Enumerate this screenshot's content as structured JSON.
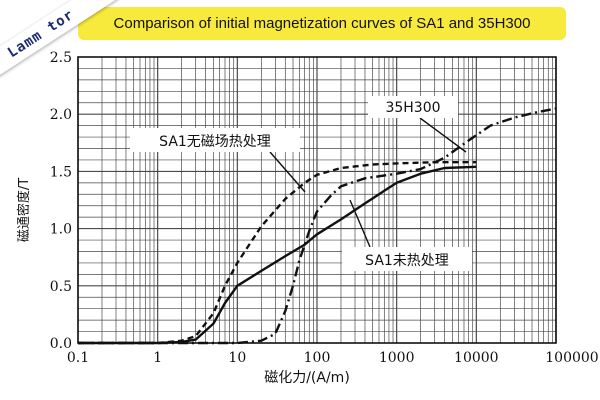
{
  "banner": {
    "title": "Comparison of initial magnetization curves of SA1 and 35H300",
    "background": "#f7ea3d"
  },
  "watermark": {
    "text": "Lamm tor"
  },
  "chart_data": {
    "type": "line",
    "xscale": "log",
    "xlim": [
      0.1,
      100000
    ],
    "ylim": [
      0,
      2.5
    ],
    "grid": true,
    "xlabel": "磁化力/(A/m)",
    "ylabel": "磁通密度/T",
    "x_ticks": [
      "0.1",
      "1",
      "10",
      "100",
      "1000",
      "10000",
      "100000"
    ],
    "y_ticks": [
      "0.0",
      "0.5",
      "1.0",
      "1.5",
      "2.0",
      "2.5"
    ],
    "series": [
      {
        "name": "SA1无磁场热处理",
        "style": "dashed",
        "points": [
          [
            0.1,
            0.0
          ],
          [
            1,
            0.0
          ],
          [
            2,
            0.02
          ],
          [
            3,
            0.06
          ],
          [
            5,
            0.26
          ],
          [
            7,
            0.5
          ],
          [
            10,
            0.7
          ],
          [
            20,
            1.02
          ],
          [
            40,
            1.26
          ],
          [
            70,
            1.4
          ],
          [
            100,
            1.47
          ],
          [
            200,
            1.53
          ],
          [
            500,
            1.56
          ],
          [
            1000,
            1.57
          ],
          [
            3000,
            1.58
          ],
          [
            10000,
            1.58
          ]
        ]
      },
      {
        "name": "SA1未热处理",
        "style": "solid",
        "points": [
          [
            0.1,
            0.0
          ],
          [
            1,
            0.0
          ],
          [
            2,
            0.01
          ],
          [
            3,
            0.03
          ],
          [
            5,
            0.17
          ],
          [
            7,
            0.35
          ],
          [
            10,
            0.5
          ],
          [
            20,
            0.63
          ],
          [
            40,
            0.76
          ],
          [
            70,
            0.86
          ],
          [
            100,
            0.95
          ],
          [
            200,
            1.08
          ],
          [
            400,
            1.22
          ],
          [
            700,
            1.33
          ],
          [
            1000,
            1.4
          ],
          [
            2000,
            1.48
          ],
          [
            4000,
            1.53
          ],
          [
            10000,
            1.54
          ]
        ]
      },
      {
        "name": "35H300",
        "style": "dash-dot",
        "points": [
          [
            0.1,
            0.0
          ],
          [
            10,
            0.0
          ],
          [
            20,
            0.02
          ],
          [
            30,
            0.08
          ],
          [
            40,
            0.28
          ],
          [
            50,
            0.5
          ],
          [
            60,
            0.72
          ],
          [
            80,
            0.98
          ],
          [
            100,
            1.15
          ],
          [
            150,
            1.29
          ],
          [
            200,
            1.37
          ],
          [
            400,
            1.44
          ],
          [
            1000,
            1.48
          ],
          [
            2000,
            1.52
          ],
          [
            4000,
            1.62
          ],
          [
            8000,
            1.77
          ],
          [
            15000,
            1.9
          ],
          [
            30000,
            1.97
          ],
          [
            60000,
            2.02
          ],
          [
            100000,
            2.05
          ]
        ]
      }
    ],
    "annotations": [
      {
        "text": "SA1无磁场热处理",
        "series": 0
      },
      {
        "text": "35H300",
        "series": 2
      },
      {
        "text": "SA1未热处理",
        "series": 1
      }
    ]
  }
}
